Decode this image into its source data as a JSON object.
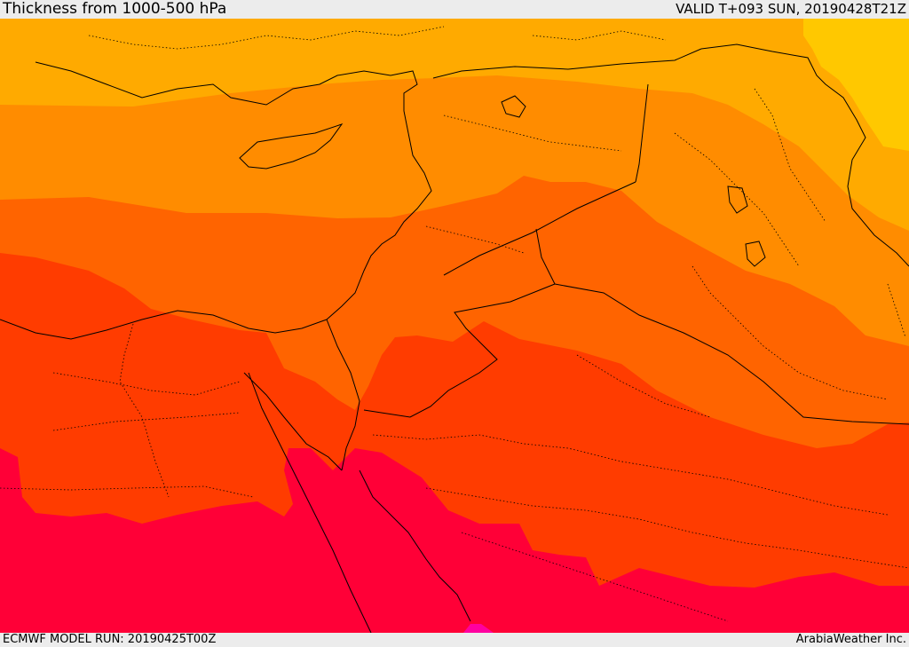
{
  "header": {
    "title": "Thickness from 1000-500 hPa",
    "valid": "VALID T+093 SUN, 20190428T21Z"
  },
  "footer": {
    "model_run": "ECMWF MODEL RUN: 20190425T00Z",
    "credit": "ArabiaWeather Inc."
  },
  "colors": {
    "band_yellow": "#ffc800",
    "band_light_orange": "#ffaa00",
    "band_orange": "#ff8c00",
    "band_dark_orange": "#ff6400",
    "band_red_orange": "#ff3c00",
    "band_crimson": "#ff0037",
    "band_magenta": "#ff00a0",
    "border_color": "#000000"
  }
}
